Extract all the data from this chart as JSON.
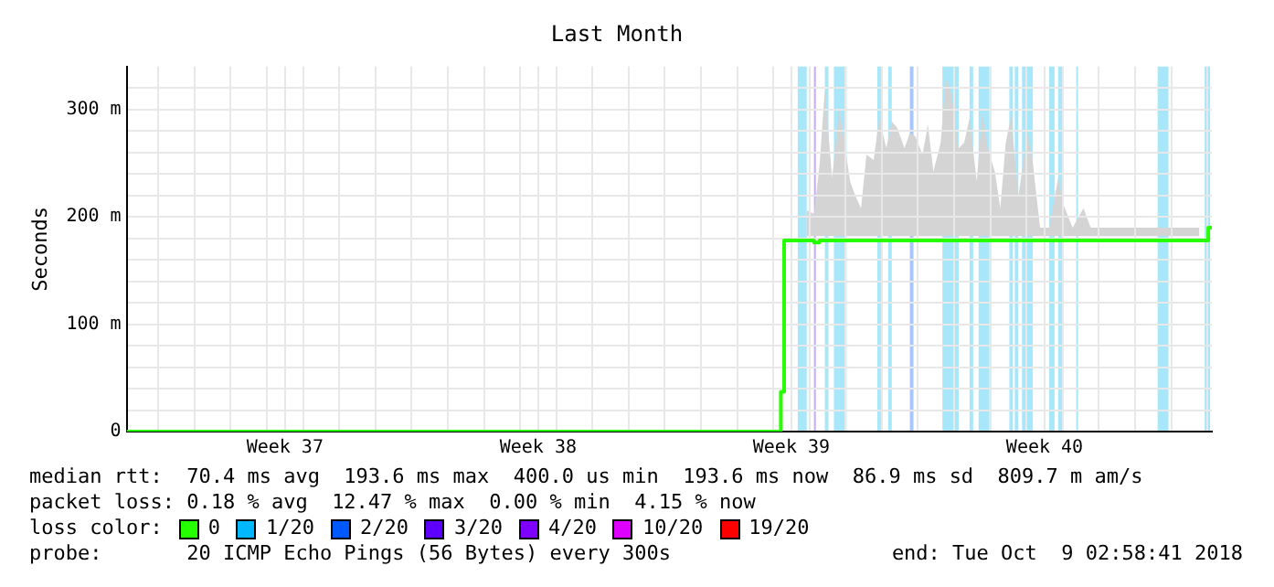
{
  "chart_data": {
    "type": "step",
    "title": "Last Month",
    "ylabel": "Seconds",
    "xlim": [
      "2018-09-09T02:58",
      "2018-10-09T02:58"
    ],
    "xticks": [
      {
        "value": "2018-09-10T00:00",
        "label": null
      },
      {
        "value": "2018-09-11T00:00",
        "label": null
      },
      {
        "value": "2018-09-12T00:00",
        "label": null
      },
      {
        "value": "2018-09-13T00:00",
        "label": null
      },
      {
        "value": "2018-09-13T12:00",
        "label": "Week 37"
      },
      {
        "value": "2018-09-14T00:00",
        "label": null
      },
      {
        "value": "2018-09-15T00:00",
        "label": null
      },
      {
        "value": "2018-09-16T00:00",
        "label": null
      },
      {
        "value": "2018-09-17T00:00",
        "label": null
      },
      {
        "value": "2018-09-18T00:00",
        "label": null
      },
      {
        "value": "2018-09-19T00:00",
        "label": null
      },
      {
        "value": "2018-09-20T00:00",
        "label": null
      },
      {
        "value": "2018-09-20T12:00",
        "label": "Week 38"
      },
      {
        "value": "2018-09-21T00:00",
        "label": null
      },
      {
        "value": "2018-09-22T00:00",
        "label": null
      },
      {
        "value": "2018-09-23T00:00",
        "label": null
      },
      {
        "value": "2018-09-24T00:00",
        "label": null
      },
      {
        "value": "2018-09-25T00:00",
        "label": null
      },
      {
        "value": "2018-09-26T00:00",
        "label": null
      },
      {
        "value": "2018-09-27T00:00",
        "label": null
      },
      {
        "value": "2018-09-27T12:00",
        "label": "Week 39"
      },
      {
        "value": "2018-09-28T00:00",
        "label": null
      },
      {
        "value": "2018-09-29T00:00",
        "label": null
      },
      {
        "value": "2018-09-30T00:00",
        "label": null
      },
      {
        "value": "2018-10-01T00:00",
        "label": null
      },
      {
        "value": "2018-10-02T00:00",
        "label": null
      },
      {
        "value": "2018-10-03T00:00",
        "label": null
      },
      {
        "value": "2018-10-04T00:00",
        "label": null
      },
      {
        "value": "2018-10-04T12:00",
        "label": "Week 40"
      },
      {
        "value": "2018-10-05T00:00",
        "label": null
      },
      {
        "value": "2018-10-06T00:00",
        "label": null
      },
      {
        "value": "2018-10-07T00:00",
        "label": null
      },
      {
        "value": "2018-10-08T00:00",
        "label": null
      },
      {
        "value": "2018-10-09T00:00",
        "label": null
      }
    ],
    "ylim": [
      0,
      340
    ],
    "yticks": [
      0,
      {
        "value": 20,
        "label": null
      },
      {
        "value": 40,
        "label": null
      },
      {
        "value": 60,
        "label": null
      },
      {
        "value": 80,
        "label": null
      },
      {
        "value": 100,
        "label": "100 m"
      },
      {
        "value": 120,
        "label": null
      },
      {
        "value": 140,
        "label": null
      },
      {
        "value": 160,
        "label": null
      },
      {
        "value": 180,
        "label": null
      },
      {
        "value": 200,
        "label": "200 m"
      },
      {
        "value": 220,
        "label": null
      },
      {
        "value": 240,
        "label": null
      },
      {
        "value": 260,
        "label": null
      },
      {
        "value": 280,
        "label": null
      },
      {
        "value": 300,
        "label": "300 m"
      },
      {
        "value": 320,
        "label": null
      }
    ],
    "grid": true,
    "legend": "bottom",
    "legend_title": "loss color:",
    "series": [
      {
        "name": "0",
        "color": "#26ff00",
        "x": [
          "2018-09-09T02:58",
          "2018-09-27T05:00",
          "2018-09-27T07:12",
          "2018-09-27T22:12",
          "2018-09-28T03:00",
          "2018-09-28T06:36",
          "2018-09-28T10:12",
          "2018-09-28T15:00",
          "2018-09-28T19:48",
          "2018-09-29T03:00",
          "2018-09-29T06:36",
          "2018-09-29T10:12",
          "2018-09-29T13:48",
          "2018-09-29T18:36",
          "2018-09-29T22:12",
          "2018-09-30T03:00",
          "2018-09-30T06:36",
          "2018-09-30T10:12",
          "2018-09-30T15:00",
          "2018-09-30T18:36",
          "2018-09-30T22:12",
          "2018-10-01T03:00",
          "2018-10-01T06:36",
          "2018-10-01T10:12",
          "2018-10-01T15:00",
          "2018-10-01T18:36",
          "2018-10-01T22:12",
          "2018-10-02T03:00",
          "2018-10-02T06:36",
          "2018-10-02T10:12",
          "2018-10-02T15:00",
          "2018-10-02T18:36",
          "2018-10-02T22:12",
          "2018-10-03T03:00",
          "2018-10-03T06:36",
          "2018-10-03T10:12",
          "2018-10-03T13:48",
          "2018-10-03T18:36",
          "2018-10-04T00:36",
          "2018-10-04T04:12",
          "2018-10-04T09:00",
          "2018-10-04T15:00",
          "2018-10-04T21:00",
          "2018-10-05T00:36",
          "2018-10-05T06:36",
          "2018-10-05T13:48",
          "2018-10-05T18:36",
          "2018-10-08T18:36",
          "2018-10-09T00:36",
          "2018-10-09T02:58"
        ],
        "values": [
          0,
          37,
          178,
          178,
          176,
          178,
          178,
          178,
          178,
          178,
          178,
          178,
          178,
          178,
          178,
          178,
          178,
          178,
          178,
          178,
          178,
          178,
          178,
          178,
          178,
          178,
          178,
          178,
          178,
          178,
          178,
          178,
          178,
          178,
          178,
          178,
          178,
          178,
          178,
          178,
          178,
          178,
          178,
          178,
          178,
          178,
          178,
          178,
          190,
          190
        ],
        "lower": [
          null,
          null,
          null,
          182,
          182,
          182,
          182,
          182,
          182,
          182,
          182,
          182,
          182,
          182,
          182,
          182,
          182,
          182,
          182,
          182,
          182,
          182,
          182,
          182,
          182,
          182,
          182,
          182,
          182,
          182,
          182,
          182,
          182,
          182,
          182,
          182,
          182,
          182,
          182,
          182,
          182,
          182,
          182,
          182,
          182,
          182,
          182,
          182,
          null,
          null
        ],
        "upper": [
          null,
          null,
          null,
          206,
          203,
          247,
          319,
          236,
          300,
          233,
          219,
          208,
          258,
          253,
          292,
          264,
          289,
          283,
          264,
          278,
          275,
          258,
          286,
          242,
          269,
          330,
          314,
          264,
          269,
          292,
          233,
          297,
          264,
          242,
          208,
          269,
          294,
          219,
          278,
          250,
          190,
          190,
          236,
          211,
          190,
          208,
          190,
          190,
          null,
          null
        ]
      },
      {
        "name": "1/20",
        "color": "#00b8ff"
      },
      {
        "name": "2/20",
        "color": "#0059ff"
      },
      {
        "name": "3/20",
        "color": "#5e00ff"
      },
      {
        "name": "4/20",
        "color": "#7e00ff"
      },
      {
        "name": "10/20",
        "color": "#dd00ff"
      },
      {
        "name": "19/20",
        "color": "#ff0000"
      }
    ],
    "bands": [
      {
        "axis": "x",
        "from": "2018-09-27T16:12",
        "to": "2018-09-27T22:12",
        "color": "#a8e6fa"
      },
      {
        "axis": "x",
        "from": "2018-09-28T03:00",
        "to": "2018-09-28T03:40",
        "color": "#c8a8fa"
      },
      {
        "axis": "x",
        "from": "2018-09-28T10:12",
        "to": "2018-09-28T12:36",
        "color": "#a8e6fa"
      },
      {
        "axis": "x",
        "from": "2018-09-28T16:12",
        "to": "2018-09-29T00:36",
        "color": "#a8e6fa"
      },
      {
        "axis": "x",
        "from": "2018-09-29T21:00",
        "to": "2018-09-29T23:24",
        "color": "#a8e6fa"
      },
      {
        "axis": "x",
        "from": "2018-09-30T04:12",
        "to": "2018-09-30T06:36",
        "color": "#a8e6fa"
      },
      {
        "axis": "x",
        "from": "2018-09-30T18:36",
        "to": "2018-09-30T21:00",
        "color": "#a8c6fa"
      },
      {
        "axis": "x",
        "from": "2018-10-01T16:12",
        "to": "2018-10-02T03:00",
        "color": "#a8e6fa"
      },
      {
        "axis": "x",
        "from": "2018-10-02T10:12",
        "to": "2018-10-02T12:36",
        "color": "#a8e6fa"
      },
      {
        "axis": "x",
        "from": "2018-10-02T16:12",
        "to": "2018-10-02T23:24",
        "color": "#a8e6fa"
      },
      {
        "axis": "x",
        "from": "2018-10-03T12:36",
        "to": "2018-10-03T15:00",
        "color": "#a8e6fa"
      },
      {
        "axis": "x",
        "from": "2018-10-03T16:12",
        "to": "2018-10-03T18:36",
        "color": "#a8e6fa"
      },
      {
        "axis": "x",
        "from": "2018-10-03T21:00",
        "to": "2018-10-04T04:12",
        "color": "#a8e6fa"
      },
      {
        "axis": "x",
        "from": "2018-10-04T15:00",
        "to": "2018-10-04T18:36",
        "color": "#a8e6fa"
      },
      {
        "axis": "x",
        "from": "2018-10-04T21:00",
        "to": "2018-10-05T00:36",
        "color": "#a8e6fa"
      },
      {
        "axis": "x",
        "from": "2018-10-05T09:00",
        "to": "2018-10-05T10:12",
        "color": "#a8e6fa"
      },
      {
        "axis": "x",
        "from": "2018-10-07T15:00",
        "to": "2018-10-07T22:12",
        "color": "#a8e6fa"
      },
      {
        "axis": "x",
        "from": "2018-10-08T22:12",
        "to": "2018-10-09T01:48",
        "color": "#a8e6fa"
      }
    ],
    "annotations": [
      "median rtt:  70.4 ms avg  193.6 ms max  400.0 us min  193.6 ms now  86.9 ms sd  809.7 m am/s",
      "packet loss: 0.18 % avg  12.47 % max  0.00 % min  4.15 % now",
      "probe:       20 ICMP Echo Pings (56 Bytes) every 300s",
      "end: Tue Oct  9 02:58:41 2018"
    ]
  }
}
